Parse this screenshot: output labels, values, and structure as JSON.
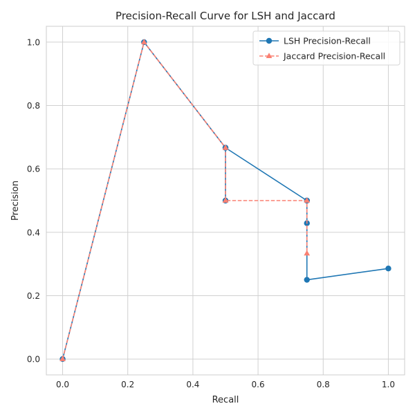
{
  "chart_data": {
    "type": "line",
    "title": "Precision-Recall Curve for LSH and Jaccard",
    "xlabel": "Recall",
    "ylabel": "Precision",
    "xlim": [
      -0.05,
      1.05
    ],
    "ylim": [
      -0.05,
      1.05
    ],
    "xticks": [
      0.0,
      0.2,
      0.4,
      0.6,
      0.8,
      1.0
    ],
    "yticks": [
      0.0,
      0.2,
      0.4,
      0.6,
      0.8,
      1.0
    ],
    "xtick_labels": [
      "0.0",
      "0.2",
      "0.4",
      "0.6",
      "0.8",
      "1.0"
    ],
    "ytick_labels": [
      "0.0",
      "0.2",
      "0.4",
      "0.6",
      "0.8",
      "1.0"
    ],
    "grid": true,
    "legend_position": "upper right",
    "series": [
      {
        "name": "LSH Precision-Recall",
        "color": "#1f77b4",
        "line_style": "solid",
        "marker": "circle",
        "x": [
          0.0,
          0.25,
          0.5,
          0.5,
          0.5,
          0.75,
          0.75,
          0.75,
          0.75,
          1.0
        ],
        "y": [
          0.0,
          1.0,
          0.6667,
          0.5,
          0.6667,
          0.5,
          0.4286,
          0.5,
          0.25,
          0.2857
        ]
      },
      {
        "name": "Jaccard Precision-Recall",
        "color": "#fa8072",
        "line_style": "dashed",
        "marker": "triangle",
        "x": [
          0.0,
          0.25,
          0.5,
          0.5,
          0.75,
          0.75
        ],
        "y": [
          0.0,
          1.0,
          0.6667,
          0.5,
          0.5,
          0.3333
        ]
      }
    ]
  }
}
